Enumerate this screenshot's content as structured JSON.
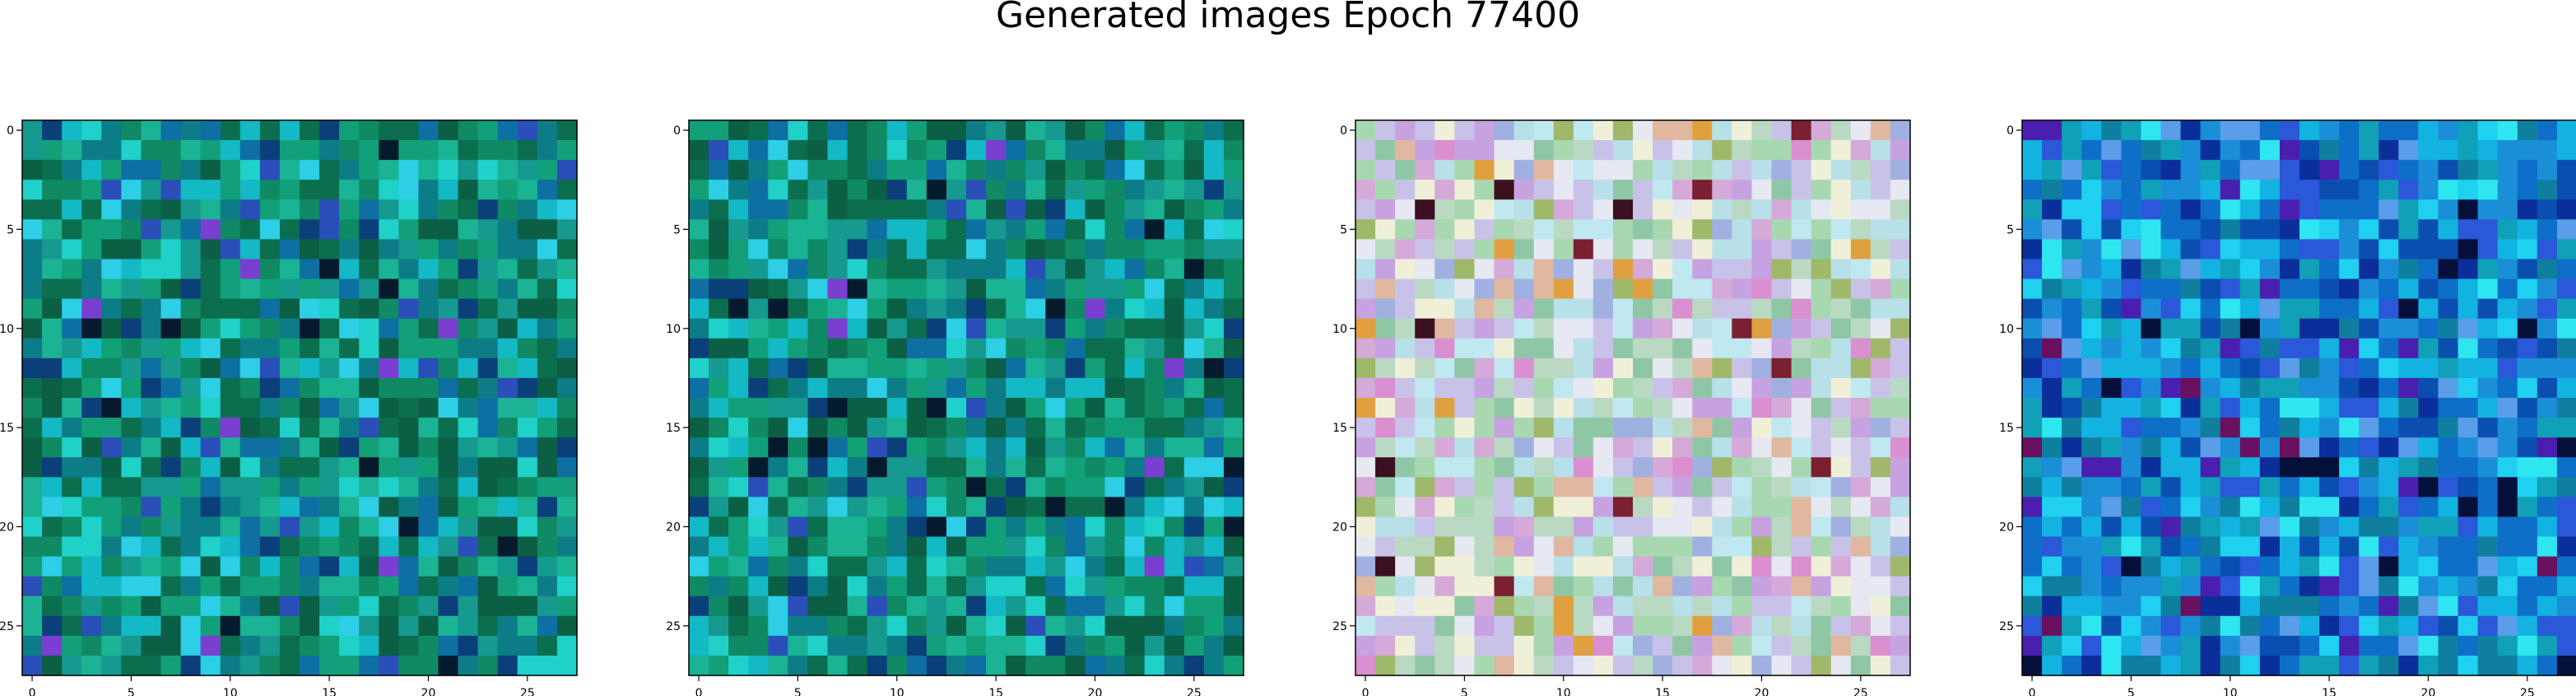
{
  "title": "Generated images Epoch 77400",
  "chart_data": {
    "type": "heatmap",
    "title": "Generated images Epoch 77400",
    "grid": false,
    "image_size": 28,
    "panels": [
      {
        "name": "image-1",
        "palette": "teal-green",
        "xticks": [
          0,
          5,
          10,
          15,
          20,
          25
        ],
        "yticks": [
          0,
          5,
          10,
          15,
          20,
          25
        ],
        "xlim": [
          -0.5,
          27.5
        ],
        "ylim": [
          27.5,
          -0.5
        ],
        "colors": [
          "#0b6e4f",
          "#0f8a64",
          "#12a079",
          "#0a5f44",
          "#1ab394",
          "#0c7d86",
          "#16998f",
          "#0e6fa3",
          "#13b9c4",
          "#1fd1c8",
          "#0b3f7a",
          "#2a4fb8",
          "#7a3fd1",
          "#061a2e",
          "#2ccfe6"
        ],
        "weights": [
          10,
          10,
          9,
          7,
          7,
          8,
          7,
          5,
          6,
          4,
          3,
          2,
          1,
          2,
          3
        ]
      },
      {
        "name": "image-2",
        "palette": "teal-green",
        "xticks": [
          0,
          5,
          10,
          15,
          20,
          25
        ],
        "yticks": [
          0,
          5,
          10,
          15,
          20,
          25
        ],
        "xlim": [
          -0.5,
          27.5
        ],
        "ylim": [
          27.5,
          -0.5
        ],
        "colors": [
          "#0b6e4f",
          "#0f8a64",
          "#12a079",
          "#0a5f44",
          "#1ab394",
          "#0c7d86",
          "#16998f",
          "#0e6fa3",
          "#13b9c4",
          "#1fd1c8",
          "#0b3f7a",
          "#2a4fb8",
          "#7a3fd1",
          "#061a2e",
          "#2ccfe6"
        ],
        "weights": [
          10,
          10,
          9,
          7,
          7,
          8,
          7,
          5,
          6,
          4,
          3,
          2,
          1,
          2,
          3
        ]
      },
      {
        "name": "image-3",
        "palette": "pastel",
        "xticks": [
          0,
          5,
          10,
          15,
          20,
          25
        ],
        "yticks": [
          0,
          5,
          10,
          15,
          20,
          25
        ],
        "xlim": [
          -0.5,
          27.5
        ],
        "ylim": [
          27.5,
          -0.5
        ],
        "colors": [
          "#b9d9c3",
          "#c9c2e8",
          "#e6e8f2",
          "#a8d8b0",
          "#d5a9d8",
          "#8fc7a6",
          "#b7e0e8",
          "#e0b8a0",
          "#9fb86a",
          "#c7a2e0",
          "#f0f0d8",
          "#d98fd0",
          "#7a2030",
          "#e0a040",
          "#a0b0e0",
          "#c0e8f0",
          "#3a1020"
        ],
        "weights": [
          8,
          7,
          8,
          6,
          5,
          5,
          6,
          3,
          3,
          4,
          6,
          2,
          1,
          1,
          4,
          5,
          1
        ]
      },
      {
        "name": "image-4",
        "palette": "blue-cyan",
        "xticks": [
          0,
          5,
          10,
          15,
          20,
          25
        ],
        "yticks": [
          0,
          5,
          10,
          15,
          20,
          25
        ],
        "xlim": [
          -0.5,
          27.5
        ],
        "ylim": [
          27.5,
          -0.5
        ],
        "colors": [
          "#1a8fd8",
          "#0d6fc8",
          "#12b3e0",
          "#0a4fb0",
          "#1fd0f0",
          "#0b2f9a",
          "#2a58d8",
          "#10a0b8",
          "#4a1fb0",
          "#05103a",
          "#2ee6f0",
          "#6a1060",
          "#0f7fa0",
          "#5a9de8"
        ],
        "weights": [
          10,
          9,
          8,
          6,
          4,
          4,
          5,
          6,
          2,
          2,
          3,
          1,
          6,
          4
        ]
      }
    ]
  }
}
